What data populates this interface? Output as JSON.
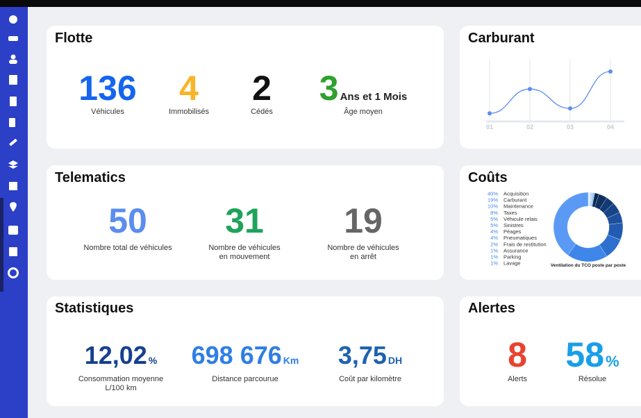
{
  "panels": {
    "flotte": {
      "title": "Flotte",
      "stats": [
        {
          "value": 136,
          "label": "Véhicules",
          "color": "#1565f0"
        },
        {
          "value": 4,
          "label": "Immobilisés",
          "color": "#f7b52a"
        },
        {
          "value": 2,
          "label": "Cédés",
          "color": "#111111"
        },
        {
          "value": 3,
          "unit": "Ans et 1 Mois",
          "label": "Âge moyen",
          "color": "#2ea12e"
        }
      ]
    },
    "telematics": {
      "title": "Telematics",
      "stats": [
        {
          "value": 50,
          "label": [
            "Nombre total de véhicules"
          ],
          "color": "#5b8def"
        },
        {
          "value": 31,
          "label": [
            "Nombre de véhicules",
            "en mouvement"
          ],
          "color": "#1fa35a"
        },
        {
          "value": 19,
          "label": [
            "Nombre de véhicules",
            "en arrêt"
          ],
          "color": "#666666"
        }
      ]
    },
    "statistiques": {
      "title": "Statistiques",
      "stats": [
        {
          "value": "12,02",
          "unit": "%",
          "label": [
            "Consommation moyenne",
            "L/100 km"
          ],
          "color": "#17408f"
        },
        {
          "value": "698 676",
          "unit": "Km",
          "label": [
            "Distance parcourue"
          ],
          "color": "#2f7ee6"
        },
        {
          "value": "3,75",
          "unit": "DH",
          "label": [
            "Coût par kilomètre"
          ],
          "color": "#1e62b0"
        }
      ]
    },
    "alertes": {
      "title": "Alertes",
      "stats": [
        {
          "value": 8,
          "label": [
            "Alerts"
          ],
          "color": "#e8432f"
        },
        {
          "value": 58,
          "unit": "%",
          "label": [
            "Résolue"
          ],
          "color": "#1a9ee8"
        }
      ]
    }
  },
  "chart_data": [
    {
      "type": "line",
      "title": "Carburant",
      "categories": [
        "01",
        "02",
        "03",
        "04"
      ],
      "values": [
        13,
        52,
        21,
        80
      ],
      "ylim": [
        0,
        100
      ],
      "color": "#5b8def",
      "grid": true
    },
    {
      "type": "pie",
      "title": "Coûts",
      "caption": "Ventilation du TCO poste par poste",
      "categories": [
        "Acquisition",
        "Carburant",
        "Maintenance",
        "Taxes",
        "Véhicule relais",
        "Sinistres",
        "Péages",
        "Pneumatiques",
        "Frais de restitution",
        "Assurance",
        "Parking",
        "Lavage"
      ],
      "values": [
        40,
        19,
        10,
        8,
        5,
        5,
        4,
        4,
        2,
        1,
        1,
        1
      ],
      "value_labels": [
        "40%",
        "19%",
        "10%",
        "8%",
        "5%",
        "5%",
        "4%",
        "4%",
        "2%",
        "1%",
        "1%",
        "1%"
      ],
      "colors": [
        "#5a9af5",
        "#3f86ea",
        "#2f6fd0",
        "#235bb0",
        "#1c4f9c",
        "#174487",
        "#123a74",
        "#0e2f60",
        "#0b2650",
        "#8fbff5",
        "#b8d6f8",
        "#ddeafc"
      ]
    }
  ]
}
